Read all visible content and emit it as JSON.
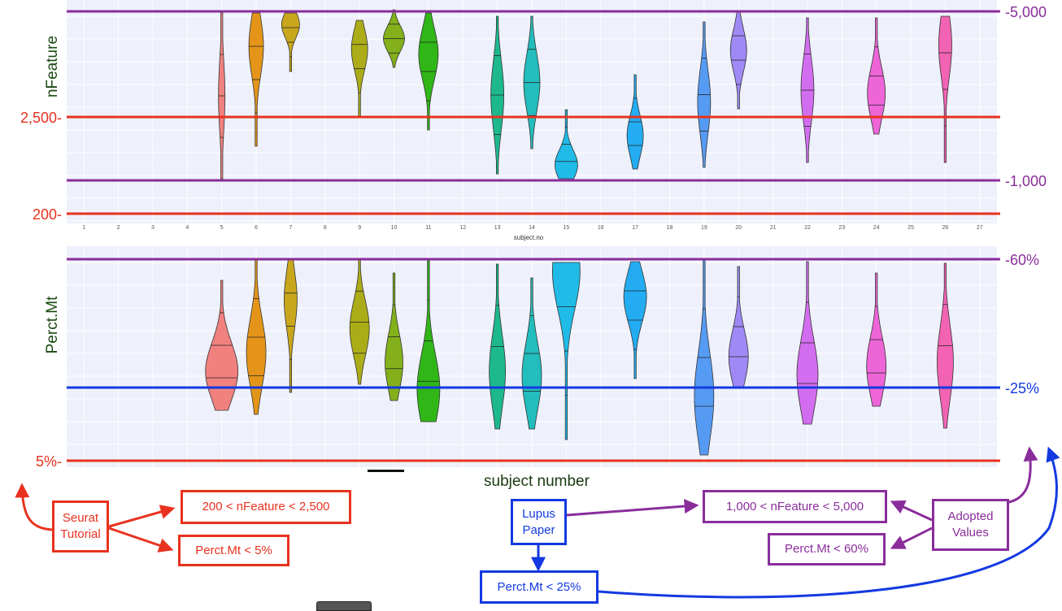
{
  "colors": {
    "seurat": "#e8321f",
    "lupus": "#1339e0",
    "adopted": "#8a2d9b",
    "panel_bg": "#eef1fb",
    "grid": "#ffffff",
    "ylabel": "#1a4a12"
  },
  "chart_data": [
    {
      "type": "violin",
      "title": "",
      "xlabel": "subject.no",
      "ylabel": "nFeature",
      "categories": [
        "1",
        "2",
        "3",
        "4",
        "5",
        "6",
        "7",
        "8",
        "9",
        "10",
        "11",
        "12",
        "13",
        "14",
        "15",
        "16",
        "17",
        "18",
        "19",
        "20",
        "21",
        "22",
        "23",
        "24",
        "25",
        "26",
        "27"
      ],
      "present_subjects": [
        "5",
        "6",
        "7",
        "9",
        "10",
        "11",
        "13",
        "14",
        "15",
        "17",
        "19",
        "20",
        "22",
        "24",
        "26"
      ],
      "left_tick_labels": [
        "2,500-",
        "200-"
      ],
      "right_tick_labels": [
        "-5,000",
        "-1,000"
      ],
      "thresholds": [
        {
          "label": "2,500-",
          "value": 2500,
          "side": "left",
          "color": "seurat"
        },
        {
          "label": "200-",
          "value": 200,
          "side": "left",
          "color": "seurat"
        },
        {
          "label": "-5,000",
          "value": 5000,
          "side": "right",
          "color": "adopted"
        },
        {
          "label": "-1,000",
          "value": 1000,
          "side": "right",
          "color": "adopted"
        }
      ],
      "grid": true
    },
    {
      "type": "violin",
      "title": "",
      "xlabel": "subject number",
      "ylabel": "Perct.Mt",
      "categories": [
        "1",
        "2",
        "3",
        "4",
        "5",
        "6",
        "7",
        "8",
        "9",
        "10",
        "11",
        "12",
        "13",
        "14",
        "15",
        "16",
        "17",
        "18",
        "19",
        "20",
        "21",
        "22",
        "23",
        "24",
        "25",
        "26",
        "27"
      ],
      "present_subjects": [
        "5",
        "6",
        "7",
        "9",
        "10",
        "11",
        "13",
        "14",
        "15",
        "17",
        "19",
        "20",
        "22",
        "24",
        "26"
      ],
      "left_tick_labels": [
        "5%-"
      ],
      "right_tick_labels": [
        "-60%",
        "-25%"
      ],
      "thresholds": [
        {
          "label": "5%-",
          "value": 5,
          "side": "left",
          "color": "seurat"
        },
        {
          "label": "-60%",
          "value": 60,
          "side": "right",
          "color": "adopted"
        },
        {
          "label": "-25%",
          "value": 25,
          "side": "right",
          "color": "lupus"
        }
      ],
      "grid": true
    }
  ],
  "annotations": {
    "seurat_label": "Seurat\nTutorial",
    "seurat_nfeature": "200 < nFeature < 2,500",
    "seurat_mt": "Perct.Mt < 5%",
    "lupus_label": "Lupus\nPaper",
    "lupus_mt": "Perct.Mt < 25%",
    "adopted_label": "Adopted\nValues",
    "adopted_nfeature": "1,000 < nFeature < 5,000",
    "adopted_mt": "Perct.Mt < 60%"
  }
}
